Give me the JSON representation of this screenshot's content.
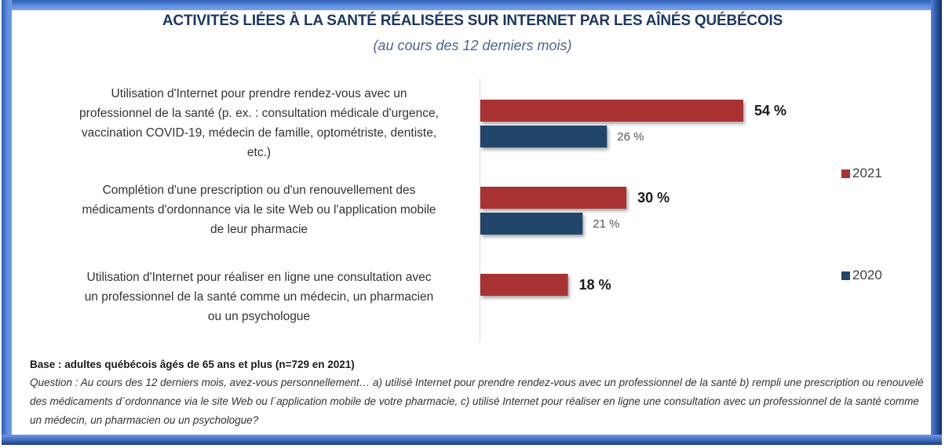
{
  "chart_data": {
    "type": "bar",
    "orientation": "horizontal",
    "title": "ACTIVITÉS LIÉES À LA SANTÉ RÉALISÉES SUR INTERNET PAR LES AÎNÉS QUÉBÉCOIS",
    "subtitle": "(au cours des 12 derniers mois)",
    "xlabel": "",
    "ylabel": "",
    "xlim": [
      0,
      95
    ],
    "grid": false,
    "legend_position": "right",
    "categories": [
      "Utilisation d'Internet pour prendre rendez-vous avec un professionnel de la santé (p. ex. : consultation médicale d'urgence, vaccination COVID-19, médecin de famille, optométriste, dentiste, etc.)",
      "Complétion d'une prescription ou d'un renouvellement des médicaments d'ordonnance via le site Web ou l'application mobile de leur pharmacie",
      "Utilisation d'Internet pour réaliser en ligne une consultation avec un professionnel de la santé comme un médecin, un pharmacien ou un psychologue"
    ],
    "category_lines": [
      [
        "Utilisation d'Internet pour prendre rendez-vous avec un",
        "professionnel de la santé (p. ex. : consultation médicale d'urgence,",
        "vaccination COVID-19, médecin de famille, optométriste, dentiste,",
        "etc.)"
      ],
      [
        "Complétion d'une prescription ou d'un renouvellement des",
        "médicaments d'ordonnance via le site Web ou l'application mobile",
        "de leur pharmacie"
      ],
      [
        "Utilisation d'Internet pour réaliser en ligne une consultation avec",
        "un professionnel de la santé comme un médecin, un pharmacien",
        "ou un psychologue"
      ]
    ],
    "series": [
      {
        "name": "2021",
        "color": "#a83232",
        "values": [
          54,
          30,
          18
        ],
        "labels": [
          "54 %",
          "30 %",
          "18 %"
        ],
        "label_style": "bold"
      },
      {
        "name": "2020",
        "color": "#24456b",
        "values": [
          26,
          21,
          null
        ],
        "labels": [
          "26 %",
          "21 %",
          null
        ],
        "label_style": "normal"
      }
    ]
  },
  "footnote": {
    "base": "Base : adultes québécois âgés de 65 ans et plus (n=729 en 2021)",
    "question": "Question : Au cours des 12 derniers mois, avez-vous personnellement… a) utilisé Internet pour prendre rendez-vous avec un professionnel de la santé b) rempli une prescription ou renouvelé des médicaments d´ordonnance via le site Web ou l´application mobile de votre pharmacie, c) utilisé Internet pour réaliser en ligne une consultation avec un professionnel de la santé comme un médecin, un pharmacien ou un psychologue?"
  },
  "colors": {
    "frame": "#3a66b8",
    "title": "#1f3864",
    "subtitle": "#4a6592",
    "series_2021": "#a83232",
    "series_2020": "#24456b"
  }
}
